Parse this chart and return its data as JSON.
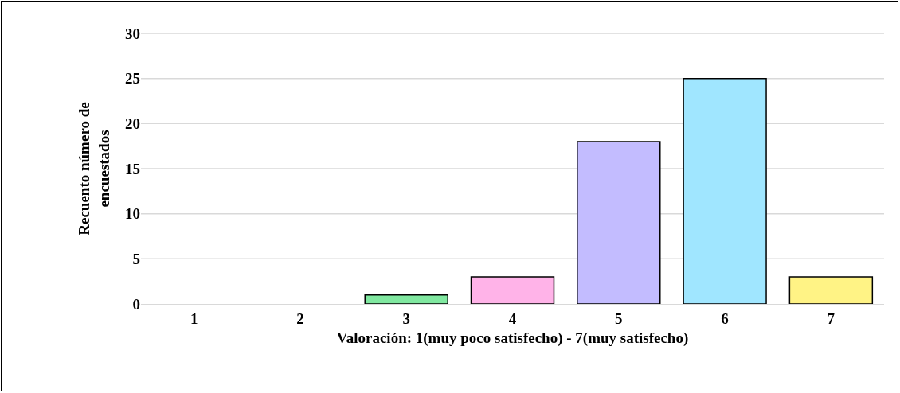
{
  "chart_data": {
    "type": "bar",
    "xlabel": "Valoración: 1(muy poco satisfecho) - 7(muy satisfecho)",
    "ylabel": "Recuento número de encuestados",
    "categories": [
      "1",
      "2",
      "3",
      "4",
      "5",
      "6",
      "7"
    ],
    "values": [
      0,
      0,
      1,
      3,
      18,
      25,
      3
    ],
    "colors": [
      null,
      null,
      "#80e8a0",
      "#ffb3e8",
      "#c3bcff",
      "#a0e6ff",
      "#fff385"
    ],
    "ylim": [
      0,
      30
    ],
    "yticks": [
      0,
      5,
      10,
      15,
      20,
      25,
      30
    ],
    "grid": "y"
  }
}
